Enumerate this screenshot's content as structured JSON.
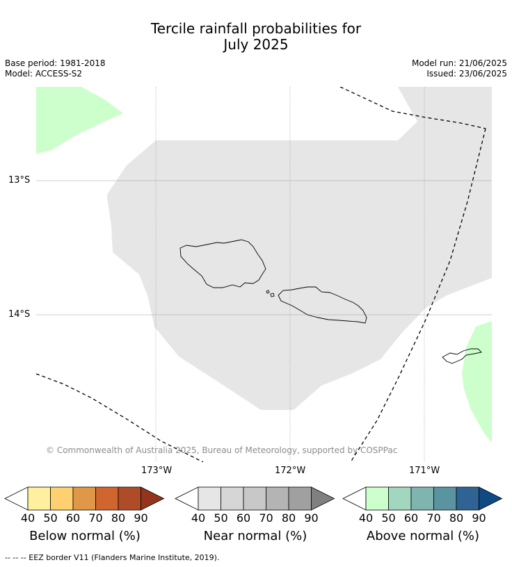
{
  "title": {
    "line1": "Tercile rainfall probabilities for",
    "line2": "July 2025"
  },
  "meta": {
    "base_period": "Base period: 1981-2018",
    "model": "Model: ACCESS-S2",
    "model_run": "Model run: 21/06/2025",
    "issued": "Issued: 23/06/2025"
  },
  "map": {
    "lat_labels": [
      "13°S",
      "14°S"
    ],
    "lon_labels": [
      "173°W",
      "172°W",
      "171°W"
    ],
    "copyright": "© Commonwealth of Australia 2025, Bureau of Meteorology, supported by COSPPac",
    "colors": {
      "near_normal_fill": "#e6e6e6",
      "above_normal_fill": "#ccffcc",
      "coastline": "#000000",
      "eez_line": "#000000",
      "gridline": "#999999"
    }
  },
  "colorbars": [
    {
      "label": "Below normal (%)",
      "ticks": [
        "40",
        "50",
        "60",
        "70",
        "80",
        "90"
      ],
      "colors": [
        "#ffffff",
        "#fff0a0",
        "#ffd070",
        "#e09848",
        "#d0652f",
        "#b04b28",
        "#94341d"
      ]
    },
    {
      "label": "Near normal (%)",
      "ticks": [
        "40",
        "50",
        "60",
        "70",
        "80",
        "90"
      ],
      "colors": [
        "#ffffff",
        "#e6e6e6",
        "#d6d6d6",
        "#c8c8c8",
        "#b4b4b4",
        "#a0a0a0",
        "#808080"
      ]
    },
    {
      "label": "Above normal (%)",
      "ticks": [
        "40",
        "50",
        "60",
        "70",
        "80",
        "90"
      ],
      "colors": [
        "#ffffff",
        "#ccffcc",
        "#a3d6bf",
        "#80b4b0",
        "#5a94a0",
        "#2f6393",
        "#0f4a82"
      ]
    }
  ],
  "footer": "-- -- -- EEZ border V11 (Flanders Marine Institute, 2019)."
}
